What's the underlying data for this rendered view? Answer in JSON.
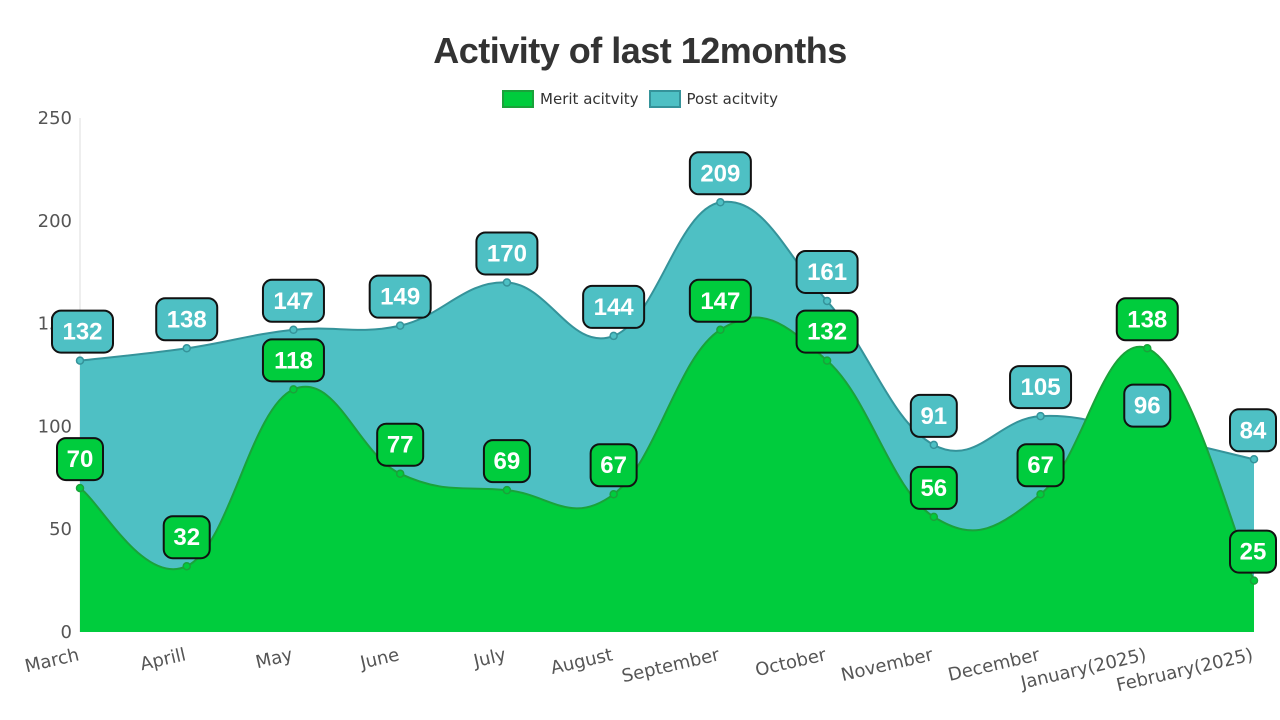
{
  "chart_data": {
    "type": "area",
    "title": "Activity of last 12months",
    "xlabel": "",
    "ylabel": "",
    "categories": [
      "March",
      "Aprill",
      "May",
      "June",
      "July",
      "August",
      "September",
      "October",
      "November",
      "December",
      "January(2025)",
      "February(2025)"
    ],
    "ylim": [
      0,
      250
    ],
    "yticks": [
      0,
      50,
      100,
      150,
      200,
      250
    ],
    "legend_position": "top-center",
    "grid": false,
    "series": [
      {
        "name": "Merit acitvity",
        "color": "#00cc3d",
        "stroke": "#1aa23a",
        "values": [
          70,
          32,
          118,
          77,
          69,
          67,
          147,
          132,
          56,
          67,
          138,
          25
        ]
      },
      {
        "name": "Post acitvity",
        "color": "#4ec0c4",
        "stroke": "#35939a",
        "values": [
          132,
          138,
          147,
          149,
          170,
          144,
          209,
          161,
          91,
          105,
          96,
          84
        ]
      }
    ]
  }
}
